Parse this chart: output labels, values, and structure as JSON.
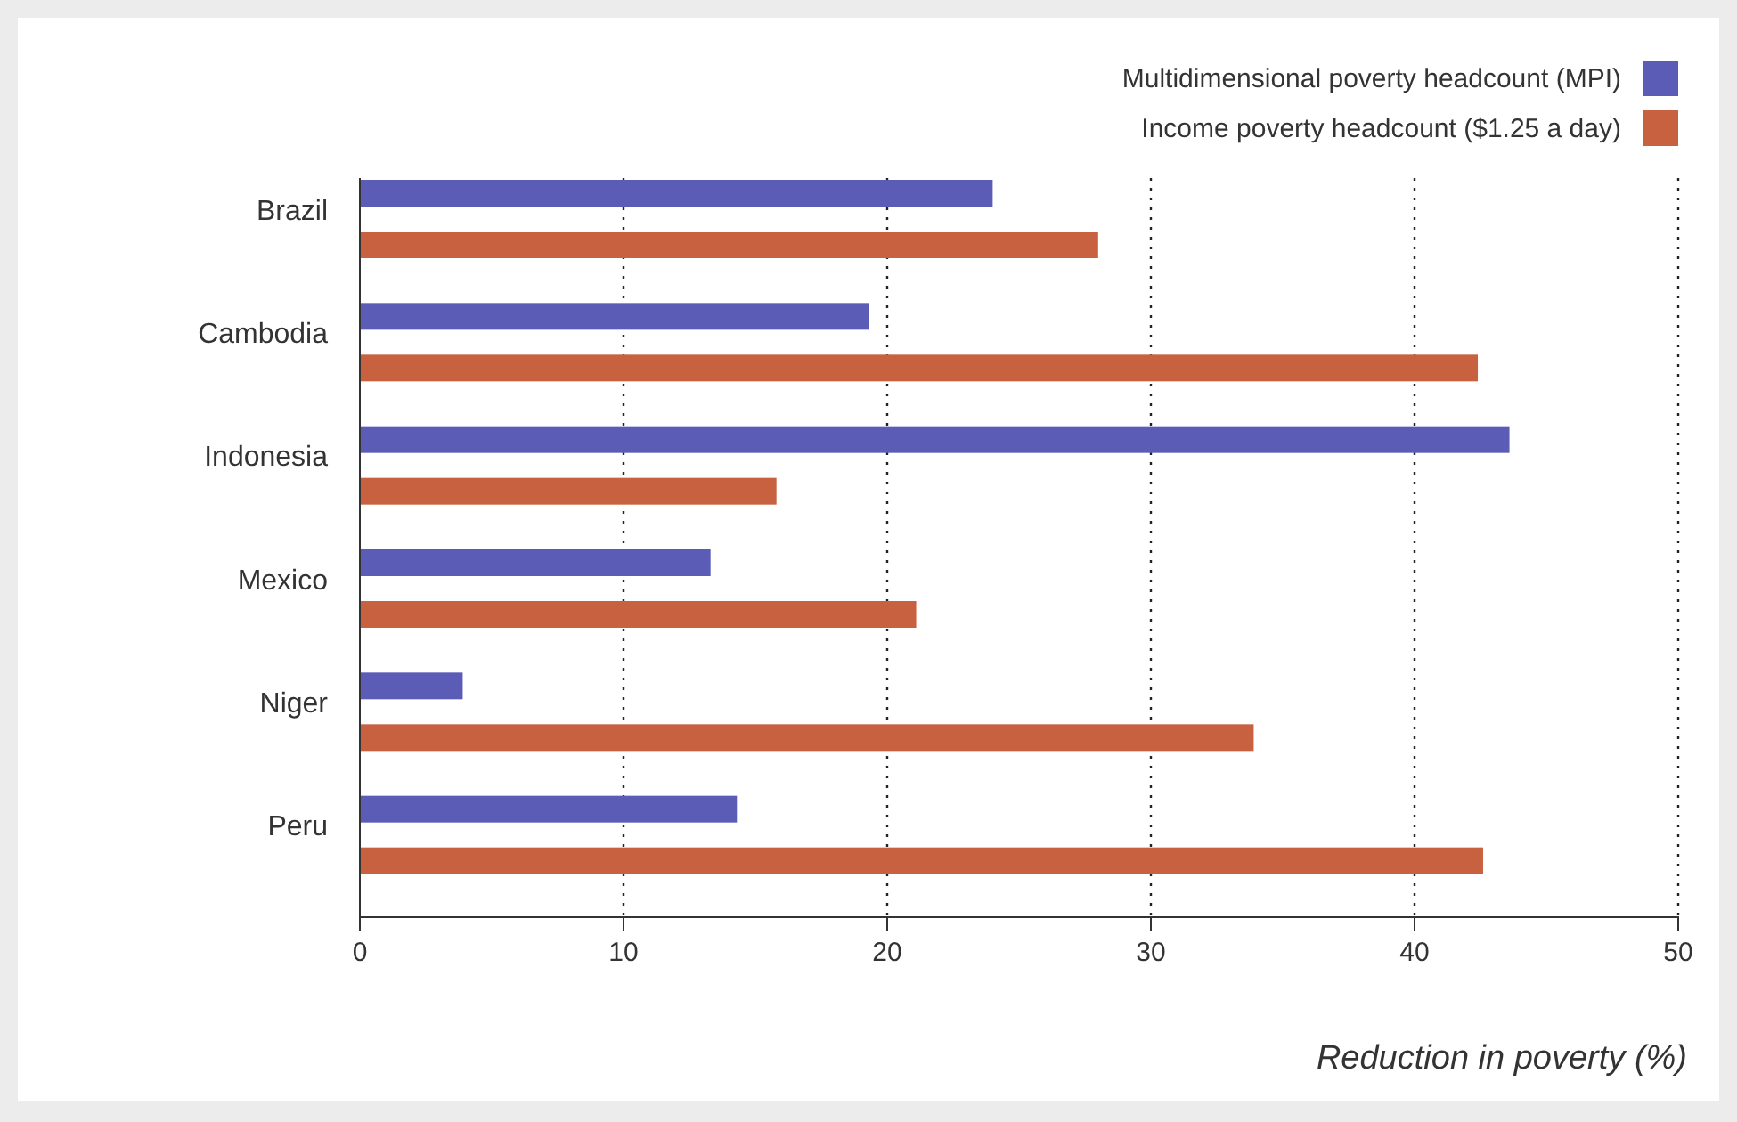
{
  "chart_data": {
    "type": "bar",
    "orientation": "horizontal",
    "xlabel": "Reduction in poverty (%)",
    "categories": [
      "Brazil",
      "Cambodia",
      "Indonesia",
      "Mexico",
      "Niger",
      "Peru"
    ],
    "series": [
      {
        "name": "Multidimensional poverty headcount (MPI)",
        "color": "#5a5cb6",
        "values": [
          24.0,
          19.3,
          43.6,
          13.3,
          3.9,
          14.3
        ]
      },
      {
        "name": "Income poverty headcount ($1.25 a day)",
        "color": "#c8613f",
        "values": [
          28.0,
          42.4,
          15.8,
          21.1,
          33.9,
          42.6
        ]
      }
    ],
    "xlim": [
      0,
      50
    ],
    "xticks": [
      0,
      10,
      20,
      30,
      40,
      50
    ],
    "grid": "x",
    "legend": "top right"
  }
}
